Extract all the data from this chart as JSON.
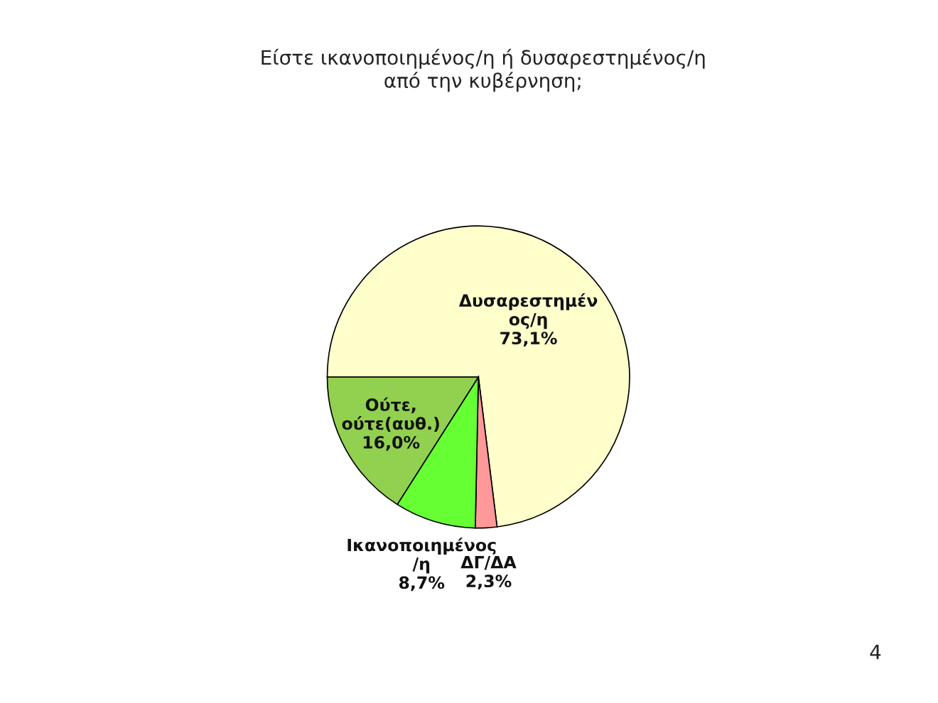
{
  "chart_data": {
    "type": "pie",
    "title": "Είστε ικανοποιημένος/η ή δυσαρεστημένος/η\nαπό την κυβέρνηση;",
    "categories": [
      "Δυσαρεστημέν\nος/η",
      "ΔΓ/ΔΑ",
      "Ικανοποιημένος\n/η",
      "Ούτε,\nούτε(αυθ.)"
    ],
    "values": [
      73.1,
      2.3,
      8.7,
      16.0
    ],
    "value_labels": [
      "73,1%",
      "2,3%",
      "8,7%",
      "16,0%"
    ],
    "colors": [
      "#ffffcc",
      "#ff9999",
      "#66ff33",
      "#92d050"
    ],
    "annotations": [
      "4"
    ],
    "legend": false
  }
}
